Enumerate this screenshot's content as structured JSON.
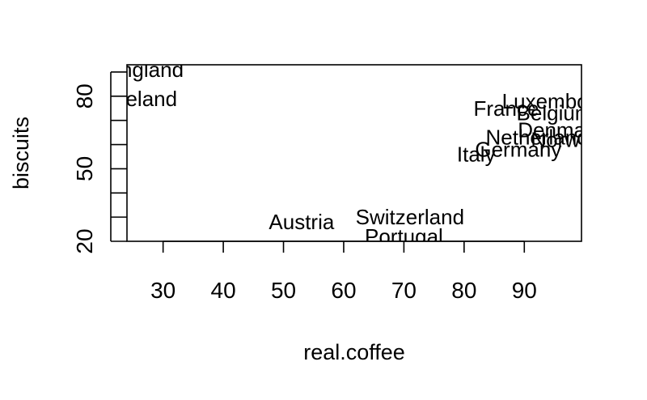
{
  "chart_data": {
    "type": "scatter",
    "title": "",
    "xlabel": "real.coffee",
    "ylabel": "biscuits",
    "xlim": [
      24,
      99.5
    ],
    "ylim": [
      20,
      93
    ],
    "x_ticks": [
      30,
      40,
      50,
      60,
      70,
      80,
      90
    ],
    "y_ticks_minor": [
      20,
      30,
      40,
      50,
      60,
      70,
      80,
      90
    ],
    "y_tick_labels": [
      20,
      50,
      80
    ],
    "grid": false,
    "legend": "none",
    "colors": {
      "points": "#000000",
      "axes": "#000000"
    },
    "points": [
      {
        "label": "England",
        "x": 27,
        "y": 91
      },
      {
        "label": "Ireland",
        "x": 27,
        "y": 79
      },
      {
        "label": "Austria",
        "x": 53,
        "y": 28
      },
      {
        "label": "Switzerland",
        "x": 71,
        "y": 30
      },
      {
        "label": "Portugal",
        "x": 70,
        "y": 22
      },
      {
        "label": "Italy",
        "x": 82,
        "y": 56
      },
      {
        "label": "France",
        "x": 87,
        "y": 75
      },
      {
        "label": "Belgium",
        "x": 95,
        "y": 73
      },
      {
        "label": "Luxembourg",
        "x": 96,
        "y": 78
      },
      {
        "label": "Denmark",
        "x": 96,
        "y": 66
      },
      {
        "label": "Netherlands",
        "x": 93,
        "y": 63
      },
      {
        "label": "Norway",
        "x": 97,
        "y": 62
      },
      {
        "label": "Germany",
        "x": 89,
        "y": 58
      }
    ]
  }
}
